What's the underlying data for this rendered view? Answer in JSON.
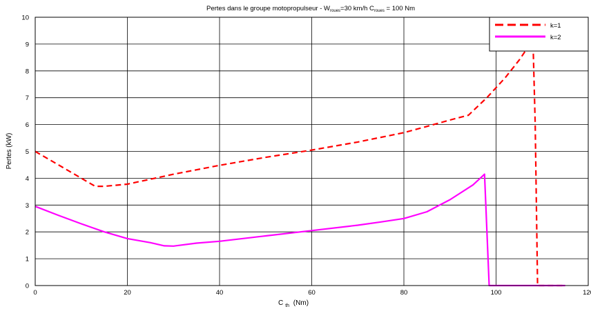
{
  "chart_data": {
    "type": "line",
    "title": {
      "prefix": "Pertes dans le groupe motopropulseur - W",
      "sub1": "roues",
      "mid": "=30 km/h C",
      "sub2": "roues",
      "suffix": " = 100 Nm"
    },
    "xlabel": {
      "main": "C",
      "sub": "th",
      "unit": " (Nm)"
    },
    "ylabel": "Pertes (kW)",
    "xlim": [
      0,
      120
    ],
    "ylim": [
      0,
      10
    ],
    "xticks": [
      "0",
      "20",
      "40",
      "60",
      "80",
      "100",
      "120"
    ],
    "yticks": [
      "0",
      "1",
      "2",
      "3",
      "4",
      "5",
      "6",
      "7",
      "8",
      "9",
      "10"
    ],
    "grid": true,
    "legend_position": "top-right",
    "series": [
      {
        "name": "k=1",
        "color": "#ff0000",
        "style": "dashed",
        "x": [
          0,
          5,
          10,
          13,
          15,
          20,
          30,
          40,
          50,
          60,
          70,
          80,
          85,
          90,
          94,
          98,
          102,
          105,
          107,
          108,
          108.5,
          109,
          110,
          115
        ],
        "y": [
          5.0,
          4.5,
          4.0,
          3.7,
          3.7,
          3.78,
          4.15,
          4.48,
          4.78,
          5.05,
          5.35,
          5.7,
          5.93,
          6.17,
          6.35,
          7.0,
          7.75,
          8.4,
          8.9,
          9.2,
          6.0,
          0.0,
          0.0,
          0.0
        ]
      },
      {
        "name": "k=2",
        "color": "#ff00ff",
        "style": "solid",
        "x": [
          0,
          5,
          10,
          15,
          20,
          25,
          28,
          30,
          35,
          40,
          50,
          60,
          70,
          75,
          80,
          85,
          90,
          95,
          97.5,
          98.5,
          100,
          110,
          115
        ],
        "y": [
          2.95,
          2.62,
          2.3,
          2.0,
          1.75,
          1.6,
          1.48,
          1.47,
          1.58,
          1.65,
          1.85,
          2.05,
          2.25,
          2.37,
          2.5,
          2.75,
          3.2,
          3.75,
          4.15,
          0.0,
          0.0,
          0.0,
          0.0
        ]
      }
    ]
  }
}
